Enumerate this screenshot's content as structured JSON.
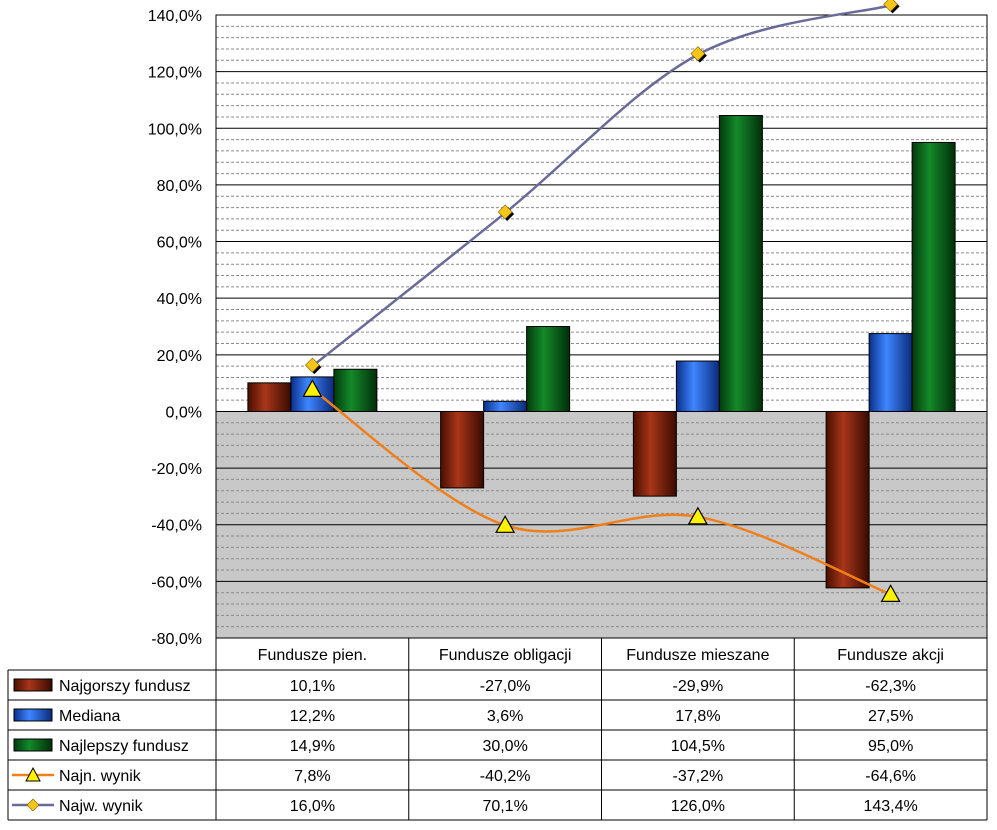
{
  "chart_data": {
    "type": "bar",
    "categories": [
      "Fundusze pien.",
      "Fundusze obligacji",
      "Fundusze mieszane",
      "Fundusze akcji"
    ],
    "ylim": [
      -80,
      140
    ],
    "y_ticks": [
      -80,
      -60,
      -40,
      -20,
      0,
      20,
      40,
      60,
      80,
      100,
      120,
      140
    ],
    "y_tick_labels": [
      "-80,0%",
      "-60,0%",
      "-40,0%",
      "-20,0%",
      "0,0%",
      "20,0%",
      "40,0%",
      "60,0%",
      "80,0%",
      "100,0%",
      "120,0%",
      "140,0%"
    ],
    "grid": true,
    "legend": "data table below plot",
    "series": [
      {
        "name": "Najgorszy fundusz",
        "kind": "bar",
        "color": "#8B2500",
        "values": [
          10.1,
          -27.0,
          -29.9,
          -62.3
        ],
        "labels": [
          "10,1%",
          "-27,0%",
          "-29,9%",
          "-62,3%"
        ]
      },
      {
        "name": "Mediana",
        "kind": "bar",
        "color": "#1F5FD8",
        "values": [
          12.2,
          3.6,
          17.8,
          27.5
        ],
        "labels": [
          "12,2%",
          "3,6%",
          "17,8%",
          "27,5%"
        ]
      },
      {
        "name": "Najlepszy fundusz",
        "kind": "bar",
        "color": "#0B6B1E",
        "values": [
          14.9,
          30.0,
          104.5,
          95.0
        ],
        "labels": [
          "14,9%",
          "30,0%",
          "104,5%",
          "95,0%"
        ]
      },
      {
        "name": "Najn. wynik",
        "kind": "line",
        "color": "#F07F1A",
        "marker": "triangle",
        "marker_color": "#FFF200",
        "values": [
          7.8,
          -40.2,
          -37.2,
          -64.6
        ],
        "labels": [
          "7,8%",
          "-40,2%",
          "-37,2%",
          "-64,6%"
        ]
      },
      {
        "name": "Najw. wynik",
        "kind": "line",
        "color": "#6A6A9A",
        "marker": "diamond",
        "marker_color": "#F5C518",
        "values": [
          16.0,
          70.1,
          126.0,
          143.4
        ],
        "labels": [
          "16,0%",
          "70,1%",
          "126,0%",
          "143,4%"
        ]
      }
    ]
  }
}
